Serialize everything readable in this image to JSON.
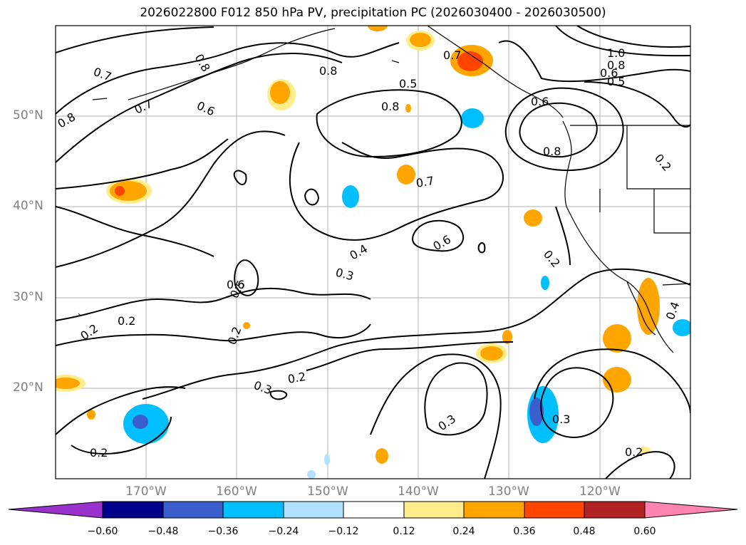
{
  "title": "2026022800 F012 850 hPa PV, precipitation PC (2026030400 - 2026030500)",
  "lat_labels": [
    "50°N",
    "40°N",
    "30°N",
    "20°N"
  ],
  "lon_labels": [
    "170°W",
    "160°W",
    "150°W",
    "140°W",
    "130°W",
    "120°W"
  ],
  "colorbar": {
    "ticks": [
      "−0.60",
      "−0.48",
      "−0.36",
      "−0.24",
      "−0.12",
      "0.12",
      "0.24",
      "0.36",
      "0.48",
      "0.60"
    ],
    "colors": [
      "#9932cc",
      "#00008b",
      "#3a5fcd",
      "#00bfff",
      "#b0e2ff",
      "#ffffff",
      "#ffec8b",
      "#ffa500",
      "#ff4500",
      "#b22222",
      "#ff83b0"
    ]
  },
  "contour_labels": [
    "0.7",
    "0.8",
    "0.7",
    "0.6",
    "0.8",
    "0.8",
    "0.5",
    "0.8",
    "0.6",
    "1.0",
    "0.8",
    "0.6",
    "0.5",
    "0.8",
    "0.7",
    "0.7",
    "0.6",
    "0.4",
    "0.3",
    "0.6",
    "0.5",
    "0.2",
    "0.2",
    "0.2",
    "0.3",
    "0.2",
    "0.3",
    "0.3",
    "0.2",
    "0.2",
    "0.2",
    "0.4",
    "0.2"
  ]
}
